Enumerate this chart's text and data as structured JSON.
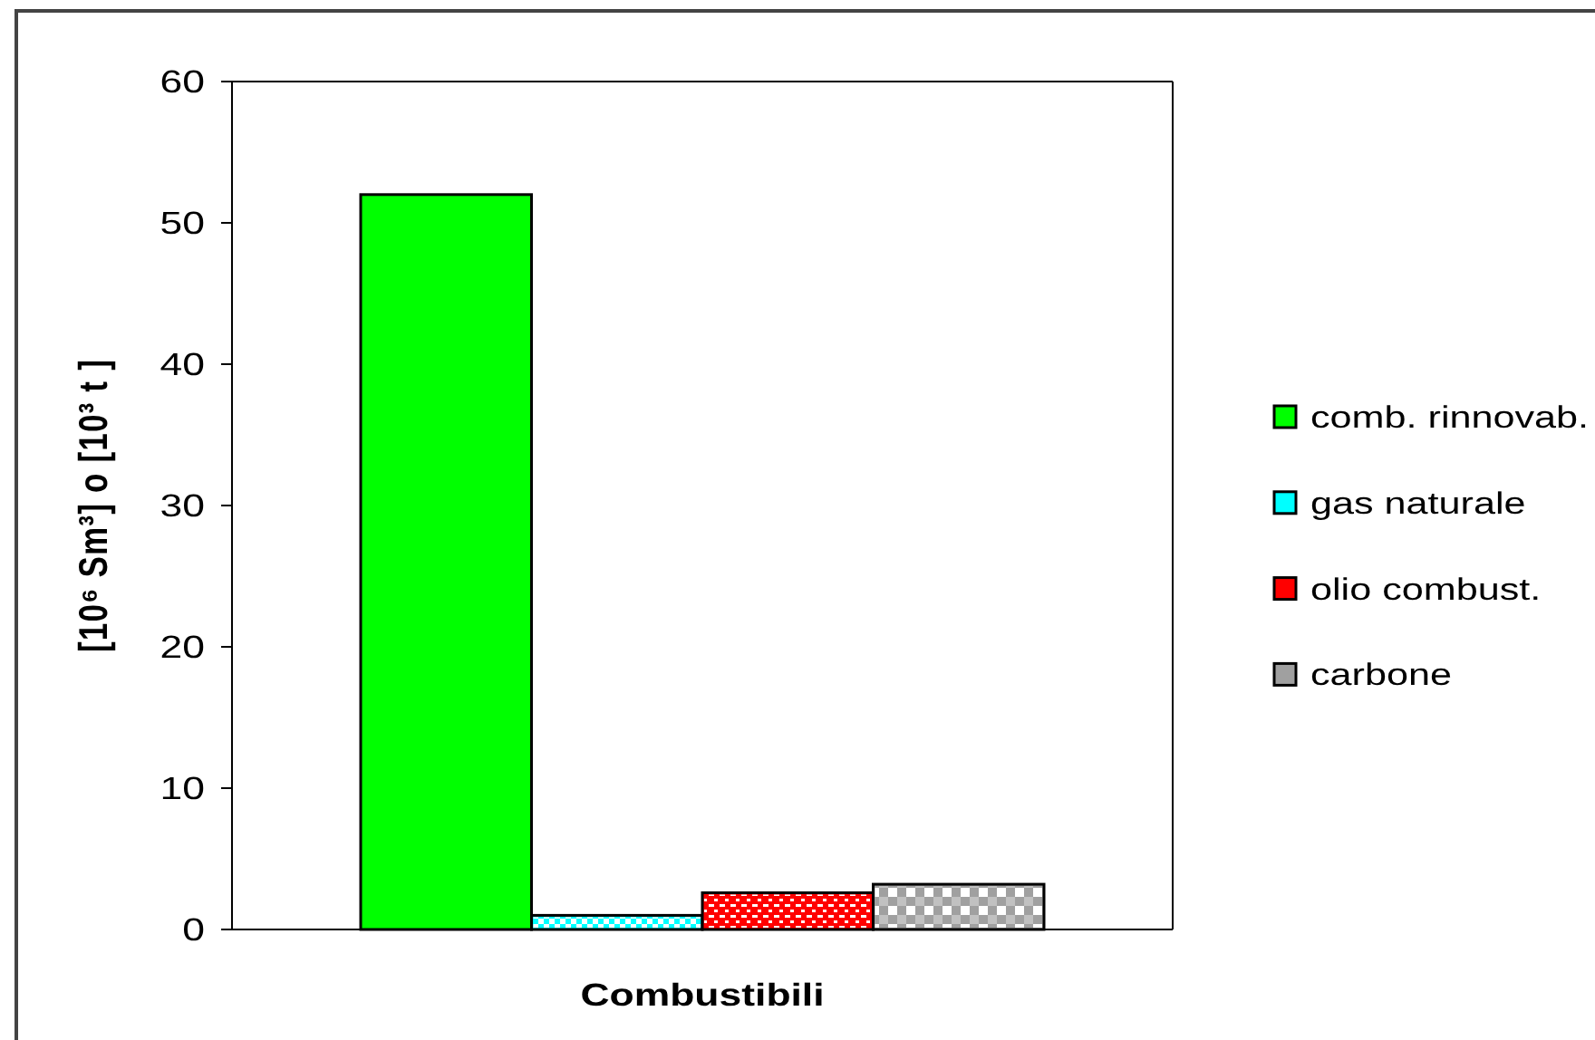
{
  "chart_data": {
    "type": "bar",
    "xlabel": "Combustibili",
    "ylabel": "[10⁶ Sm³] o [10³ t ]",
    "categories": [
      null
    ],
    "series": [
      {
        "name": "comb. rinnovab.",
        "color": "#00ff00",
        "values": [
          52
        ]
      },
      {
        "name": "gas naturale",
        "color": "#00ffff",
        "values": [
          1
        ]
      },
      {
        "name": "olio combust.",
        "color": "#ff0000",
        "values": [
          2.6
        ]
      },
      {
        "name": "carbone",
        "color": "#a0a0a0",
        "values": [
          3.2
        ]
      }
    ],
    "ylim": [
      0,
      60
    ],
    "yticks": [
      0,
      10,
      20,
      30,
      40,
      50,
      60
    ],
    "legend": "right"
  }
}
